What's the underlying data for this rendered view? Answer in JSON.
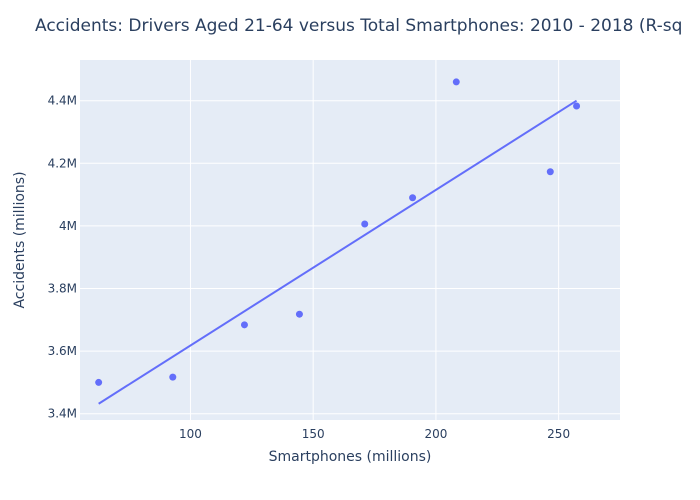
{
  "chart_data": {
    "type": "scatter",
    "title": "Accidents: Drivers Aged 21-64 versus Total Smartphones: 2010 - 2018   (R-sq",
    "xlabel": "Smartphones (millions)",
    "ylabel": "Accidents (millions)",
    "xlim": [
      55,
      275
    ],
    "ylim": [
      3.38,
      4.53
    ],
    "x_ticks": [
      100,
      150,
      200,
      250
    ],
    "x_tick_labels": [
      "100",
      "150",
      "200",
      "250"
    ],
    "y_ticks": [
      3.4,
      3.6,
      3.8,
      4.0,
      4.2,
      4.4
    ],
    "y_tick_labels": [
      "3.4M",
      "3.6M",
      "3.8M",
      "4M",
      "4.2M",
      "4.4M"
    ],
    "grid": true,
    "series": [
      {
        "type": "markers",
        "points": [
          {
            "x": 62.6,
            "y": 3.5
          },
          {
            "x": 92.8,
            "y": 3.517
          },
          {
            "x": 122.0,
            "y": 3.684
          },
          {
            "x": 144.4,
            "y": 3.718
          },
          {
            "x": 171.0,
            "y": 4.006
          },
          {
            "x": 190.5,
            "y": 4.09
          },
          {
            "x": 208.3,
            "y": 4.46
          },
          {
            "x": 246.6,
            "y": 4.173
          },
          {
            "x": 257.3,
            "y": 4.383
          }
        ]
      },
      {
        "type": "line",
        "points": [
          {
            "x": 62.6,
            "y": 3.432
          },
          {
            "x": 257.3,
            "y": 4.4
          }
        ]
      }
    ],
    "colors": {
      "marker": "#636efa",
      "line": "#636efa",
      "plot_bg": "#e5ecf6",
      "grid": "#ffffff",
      "text": "#2a3f5f"
    }
  }
}
